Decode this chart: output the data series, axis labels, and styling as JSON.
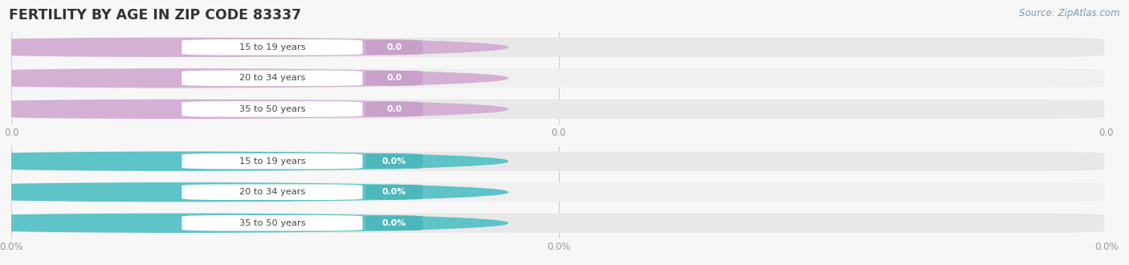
{
  "title": "FERTILITY BY AGE IN ZIP CODE 83337",
  "source": "Source: ZipAtlas.com",
  "top_group": {
    "categories": [
      "15 to 19 years",
      "20 to 34 years",
      "35 to 50 years"
    ],
    "values": [
      0.0,
      0.0,
      0.0
    ],
    "bar_color": "#d4b0d4",
    "label_bg_color": "#c9a0c9",
    "value_format": "0.0",
    "xtick_labels": [
      "0.0",
      "0.0",
      "0.0"
    ],
    "xtick_positions": [
      0.0,
      0.5,
      1.0
    ]
  },
  "bottom_group": {
    "categories": [
      "15 to 19 years",
      "20 to 34 years",
      "35 to 50 years"
    ],
    "values": [
      0.0,
      0.0,
      0.0
    ],
    "bar_color": "#5ec4c8",
    "label_bg_color": "#4db8bc",
    "value_format": "0.0%",
    "xtick_labels": [
      "0.0%",
      "0.0%",
      "0.0%"
    ],
    "xtick_positions": [
      0.0,
      0.5,
      1.0
    ]
  },
  "bg_color": "#f7f7f7",
  "bar_bg_color": "#e8e8e8",
  "bar_bg_color2": "#efefef",
  "text_color": "#555555",
  "axis_text_color": "#999999",
  "title_color": "#333333",
  "source_color": "#7a9ab5",
  "fig_width": 14.06,
  "fig_height": 3.3
}
